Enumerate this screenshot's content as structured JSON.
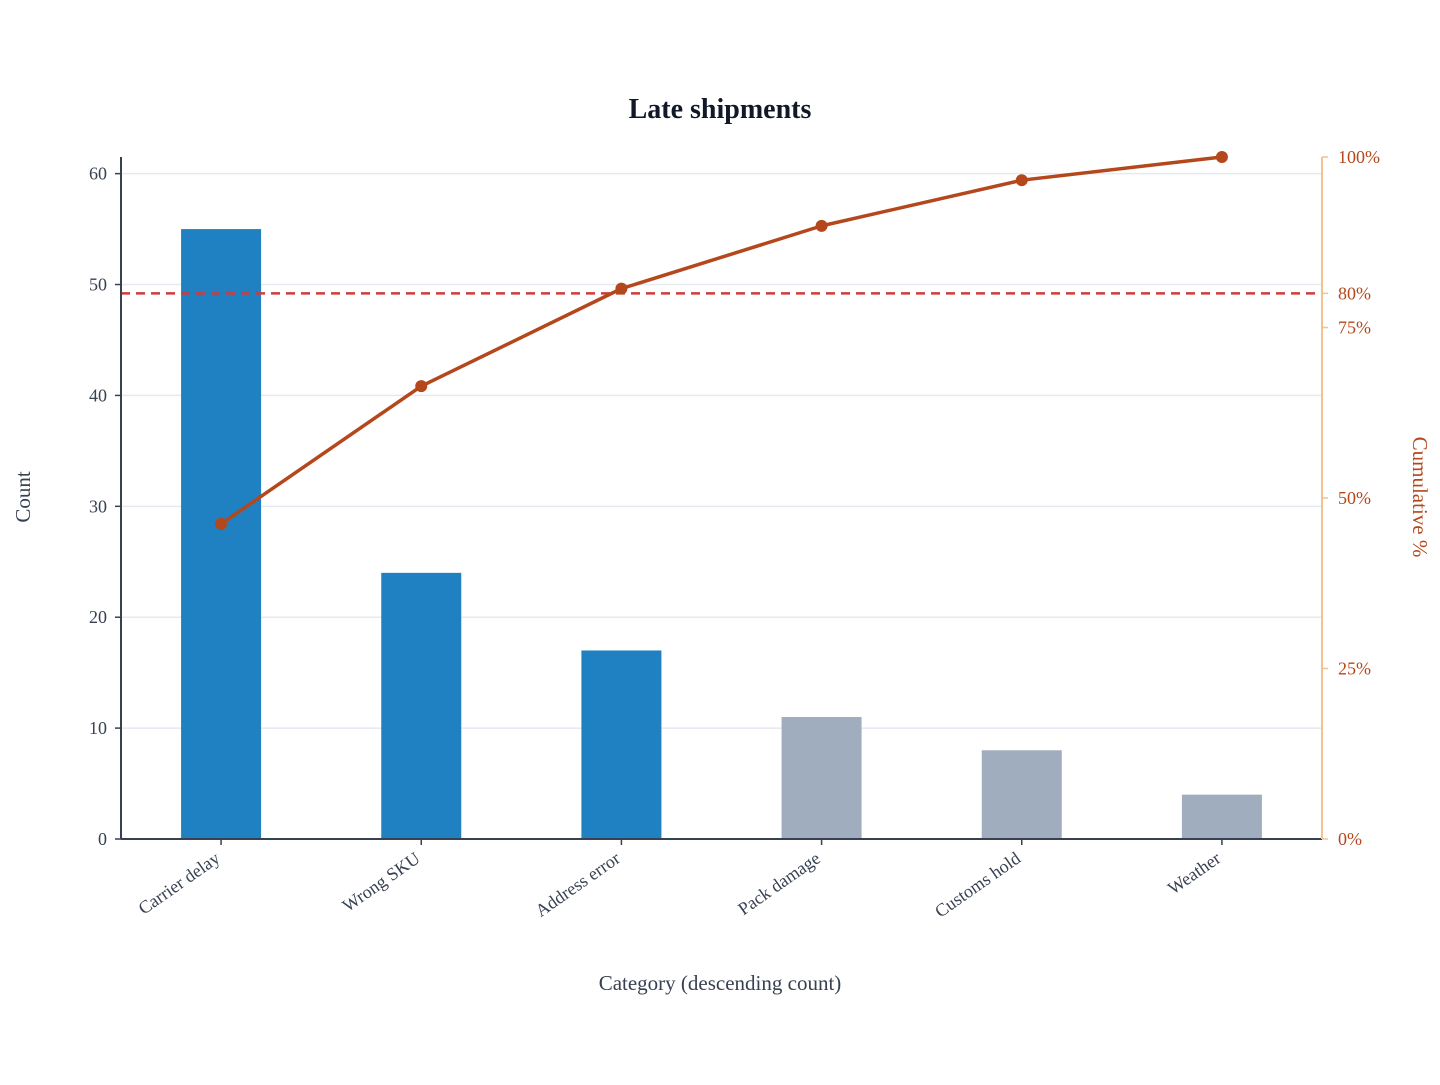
{
  "chart_data": {
    "type": "bar",
    "title": "Late shipments",
    "xlabel": "Category (descending count)",
    "ylabel": "Count",
    "y2label": "Cumulative %",
    "categories": [
      "Carrier delay",
      "Wrong SKU",
      "Address error",
      "Pack damage",
      "Customs hold",
      "Weather"
    ],
    "values": [
      55,
      24,
      17,
      11,
      8,
      4
    ],
    "cumulative_percent": [
      46.2,
      66.4,
      80.7,
      89.9,
      96.6,
      100
    ],
    "highlight_count": 3,
    "ylim": [
      0,
      61.5
    ],
    "yticks": [
      0,
      10,
      20,
      30,
      40,
      50,
      60
    ],
    "y2lim": [
      0,
      100
    ],
    "y2ticks": [
      {
        "value": 0,
        "label": "0%"
      },
      {
        "value": 25,
        "label": "25%"
      },
      {
        "value": 50,
        "label": "50%"
      },
      {
        "value": 75,
        "label": "75%"
      },
      {
        "value": 80,
        "label": "80%"
      },
      {
        "value": 100,
        "label": "100%"
      }
    ],
    "threshold": 80,
    "grid": true,
    "colors": {
      "bar_highlight": "#1f80c2",
      "bar_other": "#a0adbe",
      "line": "#b4471b",
      "threshold": "#d13b3b",
      "right_axis": "#f2c38e",
      "left_axis": "#374151",
      "grid": "#e5eaf0"
    }
  }
}
